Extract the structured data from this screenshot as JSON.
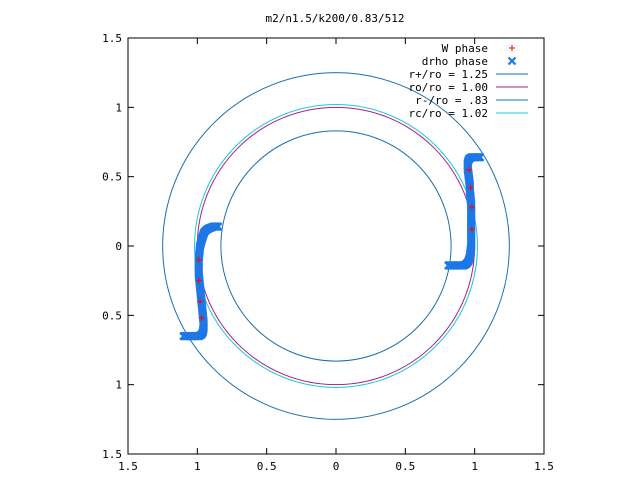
{
  "chart_data": {
    "type": "scatter",
    "title": "m2/n1.5/k200/0.83/512",
    "xlabel": "",
    "ylabel": "",
    "xlim": [
      -1.5,
      1.5
    ],
    "ylim": [
      -1.5,
      1.5
    ],
    "x_tick_labels": [
      {
        "value": -1.5,
        "label": "1.5"
      },
      {
        "value": -1.0,
        "label": "1"
      },
      {
        "value": -0.5,
        "label": "0.5"
      },
      {
        "value": 0.0,
        "label": "0"
      },
      {
        "value": 0.5,
        "label": "0.5"
      },
      {
        "value": 1.0,
        "label": "1"
      },
      {
        "value": 1.5,
        "label": "1.5"
      }
    ],
    "y_tick_labels": [
      {
        "value": 1.5,
        "label": "1.5"
      },
      {
        "value": 1.0,
        "label": "1"
      },
      {
        "value": 0.5,
        "label": "0.5"
      },
      {
        "value": 0.0,
        "label": "0"
      },
      {
        "value": -0.5,
        "label": "0.5"
      },
      {
        "value": -1.0,
        "label": "1"
      },
      {
        "value": -1.5,
        "label": "1.5"
      }
    ],
    "grid": false,
    "legend_position": "top-right",
    "circles": [
      {
        "name": "r+/ro = 1.25",
        "radius": 1.25,
        "color": "#1a6fb0"
      },
      {
        "name": "ro/ro = 1.00",
        "radius": 1.0,
        "color": "#a0208f"
      },
      {
        "name": "r-/ro = .83",
        "radius": 0.83,
        "color": "#1a6fb0"
      },
      {
        "name": "rc/ro = 1.02",
        "radius": 1.02,
        "color": "#20c8d8"
      }
    ],
    "series": [
      {
        "name": "W phase",
        "marker": "+",
        "color": "#ff0000",
        "points": [
          [
            -0.99,
            -0.1
          ],
          [
            -0.99,
            -0.25
          ],
          [
            -0.98,
            -0.4
          ],
          [
            -0.97,
            -0.52
          ],
          [
            0.96,
            0.55
          ],
          [
            0.97,
            0.42
          ],
          [
            0.98,
            0.28
          ],
          [
            0.98,
            0.12
          ]
        ]
      },
      {
        "name": "drho phase",
        "marker": "x",
        "color": "#1e78e6",
        "segments": [
          [
            [
              -0.85,
              0.14
            ],
            [
              -0.88,
              0.14
            ],
            [
              -0.91,
              0.13
            ],
            [
              -0.93,
              0.12
            ],
            [
              -0.95,
              0.1
            ],
            [
              -0.96,
              0.07
            ],
            [
              -0.97,
              0.04
            ],
            [
              -0.98,
              0.0
            ],
            [
              -0.985,
              -0.05
            ],
            [
              -0.99,
              -0.1
            ],
            [
              -0.99,
              -0.15
            ],
            [
              -0.99,
              -0.2
            ],
            [
              -0.985,
              -0.25
            ],
            [
              -0.98,
              -0.3
            ],
            [
              -0.975,
              -0.35
            ],
            [
              -0.97,
              -0.4
            ],
            [
              -0.965,
              -0.45
            ],
            [
              -0.96,
              -0.5
            ],
            [
              -0.955,
              -0.55
            ],
            [
              -0.955,
              -0.59
            ],
            [
              -0.96,
              -0.62
            ],
            [
              -0.97,
              -0.64
            ],
            [
              -0.99,
              -0.65
            ],
            [
              -1.02,
              -0.65
            ],
            [
              -1.05,
              -0.65
            ],
            [
              -1.08,
              -0.65
            ],
            [
              -1.1,
              -0.65
            ]
          ],
          [
            [
              1.04,
              0.64
            ],
            [
              1.01,
              0.64
            ],
            [
              0.98,
              0.64
            ],
            [
              0.96,
              0.63
            ],
            [
              0.95,
              0.6
            ],
            [
              0.95,
              0.56
            ],
            [
              0.955,
              0.52
            ],
            [
              0.96,
              0.48
            ],
            [
              0.965,
              0.44
            ],
            [
              0.965,
              0.4
            ],
            [
              0.97,
              0.35
            ],
            [
              0.975,
              0.3
            ],
            [
              0.975,
              0.25
            ],
            [
              0.975,
              0.2
            ],
            [
              0.975,
              0.15
            ],
            [
              0.975,
              0.1
            ],
            [
              0.975,
              0.05
            ],
            [
              0.975,
              0.0
            ],
            [
              0.97,
              -0.04
            ],
            [
              0.965,
              -0.08
            ],
            [
              0.955,
              -0.11
            ],
            [
              0.94,
              -0.13
            ],
            [
              0.92,
              -0.14
            ],
            [
              0.89,
              -0.14
            ],
            [
              0.86,
              -0.14
            ],
            [
              0.83,
              -0.14
            ],
            [
              0.81,
              -0.14
            ]
          ]
        ]
      }
    ]
  }
}
